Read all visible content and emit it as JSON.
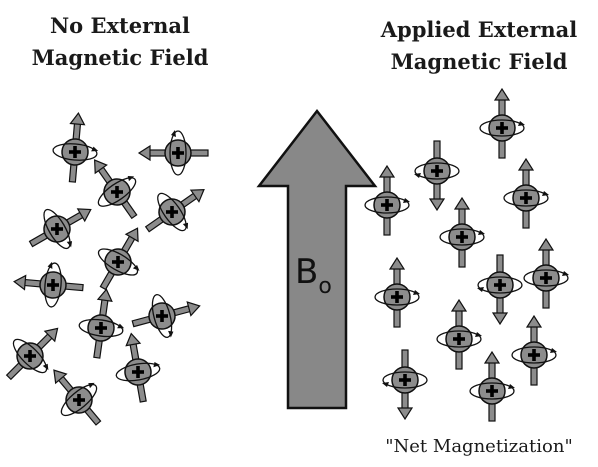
{
  "left_panel": {
    "heading_line1": "No External",
    "heading_line2": "Magnetic Field"
  },
  "right_panel": {
    "heading_line1": "Applied External",
    "heading_line2": "Magnetic Field",
    "footer": "\"Net Magnetization\""
  },
  "field_arrow": {
    "label": "B",
    "subscript": "o",
    "color": "#888888"
  },
  "colors": {
    "proton_fill": "#8c8c8c",
    "outline": "#111111",
    "stem": "#8c8c8c"
  },
  "icons": {
    "proton": "spinning-proton-icon",
    "plus": "plus-sign-icon"
  }
}
